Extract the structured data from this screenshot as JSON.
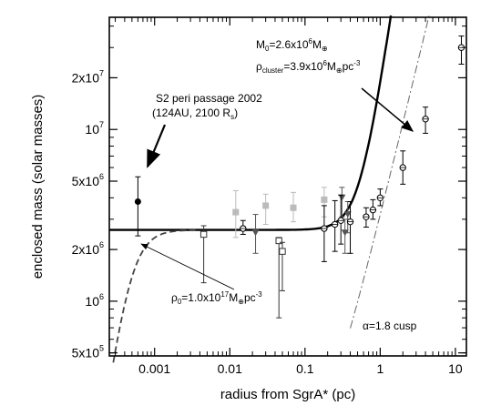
{
  "chart_data": {
    "type": "scatter",
    "xlabel": "radius from SgrA* (pc)",
    "ylabel": "enclosed mass (solar masses)",
    "xscale": "log",
    "yscale": "log",
    "xlim": [
      0.00025,
      14
    ],
    "ylim": [
      480000,
      45000000
    ],
    "xticks": [
      {
        "value": 0.001,
        "label": "0.001"
      },
      {
        "value": 0.01,
        "label": "0.01"
      },
      {
        "value": 0.1,
        "label": "0.1"
      },
      {
        "value": 1,
        "label": "1"
      },
      {
        "value": 10,
        "label": "10"
      }
    ],
    "yticks": [
      {
        "value": 500000,
        "mant": "5x10",
        "exp": "5"
      },
      {
        "value": 1000000,
        "mant": "10",
        "exp": "6"
      },
      {
        "value": 2000000,
        "mant": "2x10",
        "exp": "6"
      },
      {
        "value": 5000000,
        "mant": "5x10",
        "exp": "6"
      },
      {
        "value": 10000000,
        "mant": "10",
        "exp": "7"
      },
      {
        "value": 20000000,
        "mant": "2x10",
        "exp": "7"
      }
    ],
    "grid": false,
    "series": [
      {
        "marker": "filled-circle",
        "color": "#000000",
        "points": [
          {
            "x": 0.0006,
            "y": 3800000,
            "lo": 2400000,
            "hi": 5300000
          }
        ]
      },
      {
        "marker": "open-square",
        "color": "#333333",
        "points": [
          {
            "x": 0.0045,
            "y": 2450000,
            "lo": 1280000,
            "hi": 2750000
          },
          {
            "x": 0.045,
            "y": 2250000,
            "lo": 800000,
            "hi": 2350000
          },
          {
            "x": 0.05,
            "y": 1950000,
            "lo": 1150000,
            "hi": 2200000
          }
        ]
      },
      {
        "marker": "filled-square",
        "color": "#bbbbbb",
        "points": [
          {
            "x": 0.012,
            "y": 3300000,
            "lo": 2350000,
            "hi": 4400000
          },
          {
            "x": 0.03,
            "y": 3600000,
            "lo": 2800000,
            "hi": 4200000
          },
          {
            "x": 0.07,
            "y": 3500000,
            "lo": 2900000,
            "hi": 4300000
          },
          {
            "x": 0.18,
            "y": 3900000,
            "lo": 3100000,
            "hi": 4600000
          }
        ]
      },
      {
        "marker": "filled-triangle-down",
        "color": "#555555",
        "points": [
          {
            "x": 0.022,
            "y": 2500000,
            "lo": 1900000,
            "hi": 3200000
          },
          {
            "x": 0.31,
            "y": 4000000,
            "lo": 3100000,
            "hi": 4600000
          },
          {
            "x": 0.37,
            "y": 3200000,
            "lo": 2500000,
            "hi": 3800000
          },
          {
            "x": 0.34,
            "y": 2500000,
            "lo": 1900000,
            "hi": 3000000
          }
        ]
      },
      {
        "marker": "open-circle-cross",
        "color": "#000000",
        "points": [
          {
            "x": 0.015,
            "y": 2650000,
            "lo": 2450000,
            "hi": 2950000
          },
          {
            "x": 0.18,
            "y": 2650000,
            "lo": 1700000,
            "hi": 3600000
          },
          {
            "x": 0.25,
            "y": 2800000,
            "lo": 1950000,
            "hi": 3850000
          },
          {
            "x": 0.3,
            "y": 2950000,
            "lo": 2150000,
            "hi": 4150000
          },
          {
            "x": 0.4,
            "y": 2900000,
            "lo": 1900000,
            "hi": 3800000
          },
          {
            "x": 0.65,
            "y": 3100000,
            "lo": 2700000,
            "hi": 3500000
          },
          {
            "x": 0.8,
            "y": 3400000,
            "lo": 3000000,
            "hi": 3900000
          },
          {
            "x": 1.0,
            "y": 4000000,
            "lo": 3600000,
            "hi": 4500000
          },
          {
            "x": 2.0,
            "y": 6000000,
            "lo": 4800000,
            "hi": 7500000
          },
          {
            "x": 4.0,
            "y": 11500000,
            "lo": 9500000,
            "hi": 13500000
          },
          {
            "x": 12.0,
            "y": 30000000,
            "lo": 24000000,
            "hi": 35000000
          }
        ]
      }
    ],
    "curves": [
      {
        "id": "point-mass-plus-cluster",
        "style": "solid",
        "M0": 2600000,
        "rho_cluster": 3900000,
        "alpha": 0
      },
      {
        "id": "cluster-only",
        "style": "dash-dot",
        "alpha": 1.8
      },
      {
        "id": "dense-core",
        "style": "dashed",
        "rho0": 100000000000000000
      }
    ],
    "annotations": {
      "s2_line1": "S2 peri passage 2002",
      "s2_line2": "(124AU, 2100 R",
      "s2_sub": "s",
      "s2_close": ")",
      "m0_pre": "M",
      "m0_sub": "0",
      "m0_eq": "=2.6x10",
      "m0_exp": "6",
      "m0_unit": "M",
      "m0_sun": "⊕",
      "rc_pre": "ρ",
      "rc_sub": "cluster",
      "rc_eq": "=3.9x10",
      "rc_exp": "6",
      "rc_unit": "M",
      "rc_sun": "⊕",
      "rc_tail": "pc",
      "rc_tail_exp": "-3",
      "r0_pre": "ρ",
      "r0_sub": "0",
      "r0_eq": "=1.0x10",
      "r0_exp": "17",
      "r0_unit": "M",
      "r0_sun": "⊕",
      "r0_tail": "pc",
      "r0_tail_exp": "-3",
      "cusp": "α=1.8 cusp"
    }
  }
}
